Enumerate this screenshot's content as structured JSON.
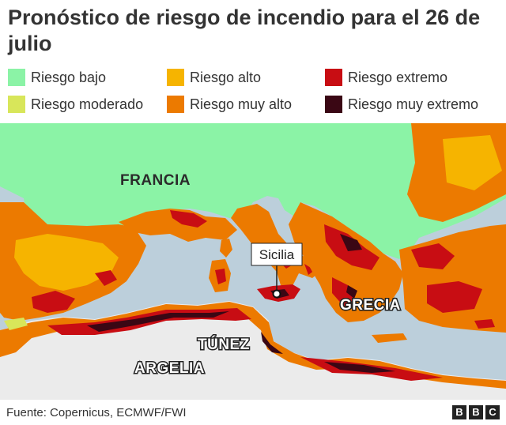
{
  "title": "Pronóstico de riesgo de incendio para el 26 de julio",
  "legend": [
    {
      "label": "Riesgo bajo",
      "color": "#8bf3a6"
    },
    {
      "label": "Riesgo alto",
      "color": "#f6b400"
    },
    {
      "label": "Riesgo extremo",
      "color": "#c80d13"
    },
    {
      "label": "Riesgo moderado",
      "color": "#d8e65a"
    },
    {
      "label": "Riesgo muy alto",
      "color": "#ec7a00"
    },
    {
      "label": "Riesgo muy extremo",
      "color": "#3a0714"
    }
  ],
  "map": {
    "sea_color": "#bccfdb",
    "no_data_color": "#ebebeb",
    "labels": {
      "francia": "FRANCIA",
      "sicilia": "Sicilia",
      "grecia": "GRECIA",
      "tunez": "TÚNEZ",
      "argelia": "ARGELIA"
    }
  },
  "footer": {
    "source": "Fuente: Copernicus, ECMWF/FWI",
    "logo_letters": [
      "B",
      "B",
      "C"
    ]
  }
}
